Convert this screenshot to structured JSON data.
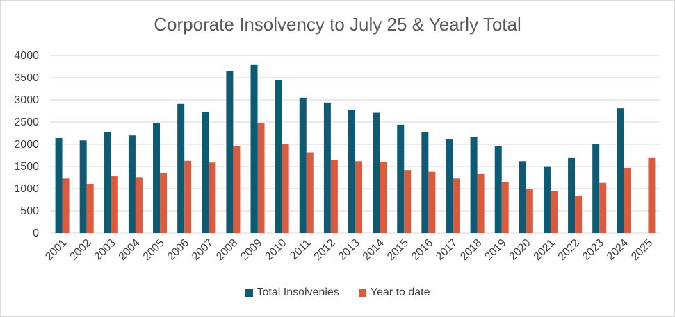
{
  "chart_data": {
    "type": "bar",
    "title": "Corporate Insolvency to July 25 & Yearly Total",
    "xlabel": "",
    "ylabel": "",
    "ylim": [
      0,
      4000
    ],
    "yticks": [
      0,
      500,
      1000,
      1500,
      2000,
      2500,
      3000,
      3500,
      4000
    ],
    "grid": true,
    "legend_position": "bottom",
    "categories": [
      "2001",
      "2002",
      "2003",
      "2004",
      "2005",
      "2006",
      "2007",
      "2008",
      "2009",
      "2010",
      "2011",
      "2012",
      "2013",
      "2014",
      "2015",
      "2016",
      "2017",
      "2018",
      "2019",
      "2020",
      "2021",
      "2022",
      "2023",
      "2024",
      "2025"
    ],
    "series": [
      {
        "name": "Total Insolvenies",
        "color": "#0e5a72",
        "values": [
          2140,
          2090,
          2280,
          2200,
          2480,
          2910,
          2730,
          3650,
          3800,
          3450,
          3050,
          2940,
          2780,
          2710,
          2440,
          2270,
          2120,
          2170,
          1960,
          1620,
          1490,
          1690,
          2000,
          2810,
          null
        ]
      },
      {
        "name": "Year to date",
        "color": "#d95c40",
        "values": [
          1230,
          1110,
          1280,
          1260,
          1360,
          1630,
          1590,
          1960,
          2470,
          2010,
          1820,
          1650,
          1620,
          1610,
          1420,
          1380,
          1230,
          1330,
          1150,
          1000,
          940,
          840,
          1130,
          1470,
          1690
        ]
      }
    ]
  }
}
